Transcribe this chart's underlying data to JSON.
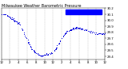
{
  "title": "Milwaukee Weather Barometric Pressure",
  "title_fontsize": 3.5,
  "bg_color": "#ffffff",
  "plot_bg_color": "#ffffff",
  "dot_color": "#0000dd",
  "dot_size": 0.5,
  "legend_color": "#0000ff",
  "ylim": [
    29.35,
    30.2
  ],
  "xlim": [
    0,
    1440
  ],
  "ytick_labels": [
    "29.4",
    "29.5",
    "29.6",
    "29.7",
    "29.8",
    "29.9",
    "30.0",
    "30.1",
    "30.2"
  ],
  "ytick_values": [
    29.4,
    29.5,
    29.6,
    29.7,
    29.8,
    29.9,
    30.0,
    30.1,
    30.2
  ],
  "grid_color": "#aaaaaa",
  "ylabel_fontsize": 2.8,
  "xlabel_fontsize": 2.8
}
